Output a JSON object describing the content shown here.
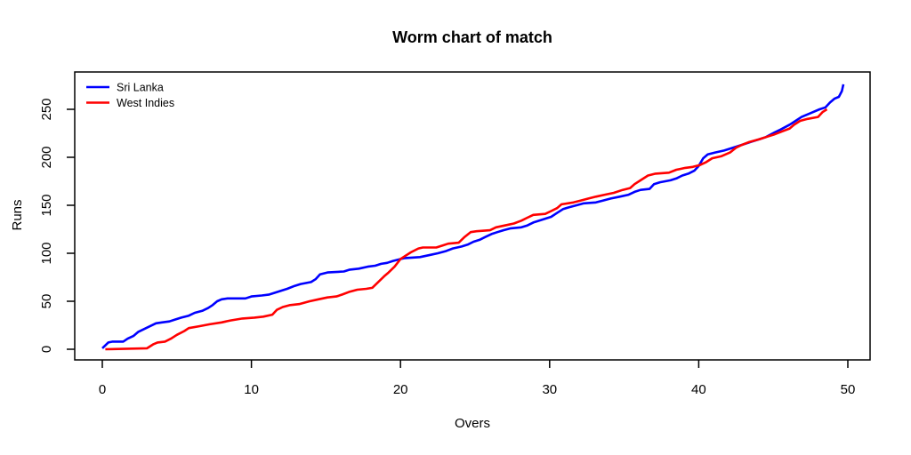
{
  "chart_data": {
    "type": "line",
    "title": "Worm chart of match",
    "xlabel": "Overs",
    "ylabel": "Runs",
    "xlim": [
      0,
      50
    ],
    "ylim": [
      0,
      280
    ],
    "xticks": [
      0,
      10,
      20,
      30,
      40,
      50
    ],
    "yticks": [
      0,
      50,
      100,
      150,
      200,
      250
    ],
    "grid": false,
    "legend_position": "top-left",
    "background": "#ffffff",
    "axis_color": "#000000",
    "series": [
      {
        "name": "Sri Lanka",
        "color": "#0000ff",
        "points": [
          [
            0,
            1
          ],
          [
            0.4,
            7
          ],
          [
            0.7,
            8
          ],
          [
            1.4,
            8
          ],
          [
            1.7,
            11
          ],
          [
            2.1,
            14
          ],
          [
            2.4,
            18
          ],
          [
            2.8,
            21
          ],
          [
            3.2,
            24
          ],
          [
            3.6,
            27
          ],
          [
            4,
            28
          ],
          [
            4.5,
            29
          ],
          [
            4.9,
            31
          ],
          [
            5.3,
            33
          ],
          [
            5.8,
            35
          ],
          [
            6.2,
            38
          ],
          [
            6.7,
            40
          ],
          [
            7.1,
            43
          ],
          [
            7.4,
            46
          ],
          [
            7.7,
            50
          ],
          [
            8,
            52
          ],
          [
            8.4,
            53
          ],
          [
            9.6,
            53
          ],
          [
            10,
            55
          ],
          [
            10.7,
            56
          ],
          [
            11.2,
            57
          ],
          [
            11.6,
            59
          ],
          [
            12,
            61
          ],
          [
            12.4,
            63
          ],
          [
            12.9,
            66
          ],
          [
            13.3,
            68
          ],
          [
            14,
            70
          ],
          [
            14.3,
            73
          ],
          [
            14.6,
            78
          ],
          [
            15.1,
            80
          ],
          [
            16.2,
            81
          ],
          [
            16.6,
            83
          ],
          [
            17.2,
            84
          ],
          [
            17.8,
            86
          ],
          [
            18.3,
            87
          ],
          [
            18.7,
            89
          ],
          [
            19.1,
            90
          ],
          [
            19.5,
            92
          ],
          [
            20,
            94
          ],
          [
            20.3,
            95
          ],
          [
            21.3,
            96
          ],
          [
            21.9,
            98
          ],
          [
            22.5,
            100
          ],
          [
            23,
            102
          ],
          [
            23.5,
            105
          ],
          [
            24.1,
            107
          ],
          [
            24.5,
            109
          ],
          [
            24.9,
            112
          ],
          [
            25.3,
            114
          ],
          [
            25.7,
            117
          ],
          [
            26.1,
            120
          ],
          [
            26.5,
            122
          ],
          [
            26.9,
            124
          ],
          [
            27.4,
            126
          ],
          [
            28.1,
            127
          ],
          [
            28.5,
            129
          ],
          [
            28.9,
            132
          ],
          [
            29.3,
            134
          ],
          [
            29.7,
            136
          ],
          [
            30.1,
            138
          ],
          [
            30.5,
            142
          ],
          [
            30.9,
            146
          ],
          [
            31.3,
            148
          ],
          [
            31.8,
            150
          ],
          [
            32.3,
            152
          ],
          [
            33.1,
            153
          ],
          [
            33.6,
            155
          ],
          [
            34.1,
            157
          ],
          [
            34.7,
            159
          ],
          [
            35.3,
            161
          ],
          [
            35.7,
            164
          ],
          [
            36.1,
            166
          ],
          [
            36.7,
            167
          ],
          [
            37,
            172
          ],
          [
            37.4,
            174
          ],
          [
            38.1,
            176
          ],
          [
            38.5,
            178
          ],
          [
            38.9,
            181
          ],
          [
            39.3,
            183
          ],
          [
            39.7,
            186
          ],
          [
            40,
            191
          ],
          [
            40.3,
            199
          ],
          [
            40.6,
            203
          ],
          [
            41.1,
            205
          ],
          [
            41.7,
            207
          ],
          [
            42.1,
            209
          ],
          [
            42.5,
            211
          ],
          [
            43.1,
            214
          ],
          [
            43.5,
            216
          ],
          [
            44.1,
            219
          ],
          [
            44.5,
            221
          ],
          [
            45.1,
            226
          ],
          [
            45.5,
            229
          ],
          [
            46.1,
            234
          ],
          [
            46.5,
            238
          ],
          [
            46.9,
            242
          ],
          [
            47.5,
            246
          ],
          [
            48.1,
            250
          ],
          [
            48.5,
            252
          ],
          [
            48.8,
            257
          ],
          [
            49.1,
            261
          ],
          [
            49.4,
            263
          ],
          [
            49.6,
            269
          ],
          [
            49.7,
            276
          ]
        ]
      },
      {
        "name": "West Indies",
        "color": "#ff0000",
        "points": [
          [
            0.2,
            0
          ],
          [
            3,
            1
          ],
          [
            3.4,
            5
          ],
          [
            3.7,
            7
          ],
          [
            4.2,
            8
          ],
          [
            4.6,
            11
          ],
          [
            5,
            15
          ],
          [
            5.5,
            19
          ],
          [
            5.8,
            22
          ],
          [
            6.5,
            24
          ],
          [
            7.2,
            26
          ],
          [
            8,
            28
          ],
          [
            8.6,
            30
          ],
          [
            9.4,
            32
          ],
          [
            10.2,
            33
          ],
          [
            10.8,
            34
          ],
          [
            11.4,
            36
          ],
          [
            11.7,
            41
          ],
          [
            12.1,
            44
          ],
          [
            12.6,
            46
          ],
          [
            13.2,
            47
          ],
          [
            13.9,
            50
          ],
          [
            14.5,
            52
          ],
          [
            15.1,
            54
          ],
          [
            15.7,
            55
          ],
          [
            16.1,
            57
          ],
          [
            16.6,
            60
          ],
          [
            17.1,
            62
          ],
          [
            17.7,
            63
          ],
          [
            18.1,
            64
          ],
          [
            18.5,
            70
          ],
          [
            18.9,
            76
          ],
          [
            19.2,
            80
          ],
          [
            19.6,
            86
          ],
          [
            20,
            94
          ],
          [
            20.3,
            97
          ],
          [
            20.7,
            101
          ],
          [
            21.2,
            105
          ],
          [
            21.5,
            106
          ],
          [
            22.4,
            106
          ],
          [
            22.8,
            108
          ],
          [
            23.2,
            110
          ],
          [
            23.9,
            111
          ],
          [
            24.3,
            117
          ],
          [
            24.7,
            122
          ],
          [
            25.1,
            123
          ],
          [
            26,
            124
          ],
          [
            26.4,
            127
          ],
          [
            27,
            129
          ],
          [
            27.6,
            131
          ],
          [
            28.1,
            134
          ],
          [
            28.5,
            137
          ],
          [
            28.9,
            140
          ],
          [
            29.7,
            141
          ],
          [
            30.1,
            144
          ],
          [
            30.5,
            147
          ],
          [
            30.8,
            151
          ],
          [
            31.6,
            153
          ],
          [
            32.1,
            155
          ],
          [
            32.6,
            157
          ],
          [
            33.1,
            159
          ],
          [
            33.7,
            161
          ],
          [
            34.3,
            163
          ],
          [
            34.9,
            166
          ],
          [
            35.4,
            168
          ],
          [
            35.7,
            172
          ],
          [
            36.1,
            176
          ],
          [
            36.6,
            181
          ],
          [
            37.1,
            183
          ],
          [
            38,
            184
          ],
          [
            38.5,
            187
          ],
          [
            39.1,
            189
          ],
          [
            39.6,
            190
          ],
          [
            40.1,
            192
          ],
          [
            40.5,
            195
          ],
          [
            40.9,
            199
          ],
          [
            41.5,
            201
          ],
          [
            42.1,
            205
          ],
          [
            42.5,
            210
          ],
          [
            42.9,
            213
          ],
          [
            43.4,
            216
          ],
          [
            44.1,
            219
          ],
          [
            44.5,
            221
          ],
          [
            45.1,
            224
          ],
          [
            45.6,
            227
          ],
          [
            46.1,
            230
          ],
          [
            46.4,
            234
          ],
          [
            46.8,
            238
          ],
          [
            47.3,
            240
          ],
          [
            48,
            242
          ],
          [
            48.3,
            247
          ],
          [
            48.6,
            250
          ]
        ]
      }
    ]
  }
}
